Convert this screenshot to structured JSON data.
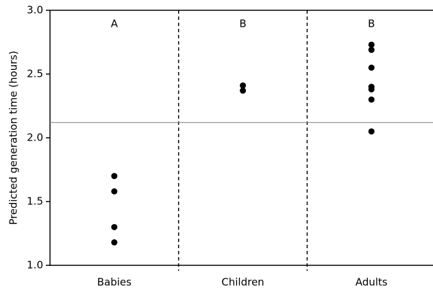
{
  "chart_data": {
    "type": "strip",
    "ylabel": "Predicted generation time (hours)",
    "categories": [
      "Babies",
      "Children",
      "Adults"
    ],
    "values": [
      [
        1.7,
        1.58,
        1.3,
        1.18
      ],
      [
        2.41,
        2.37
      ],
      [
        2.73,
        2.69,
        2.55,
        2.4,
        2.38,
        2.3,
        2.05
      ]
    ],
    "annotations": [
      "A",
      "B",
      "B"
    ],
    "reference_line": 2.12,
    "color": "#000000",
    "reference_color": "#888888",
    "ylim": [
      1.0,
      3.0
    ],
    "yticks": [
      {
        "value": 1.0,
        "label": "1.0"
      },
      1.5,
      {
        "value": 2.0,
        "label": "2.0"
      },
      2.5,
      {
        "value": 3.0,
        "label": "3.0"
      }
    ]
  }
}
